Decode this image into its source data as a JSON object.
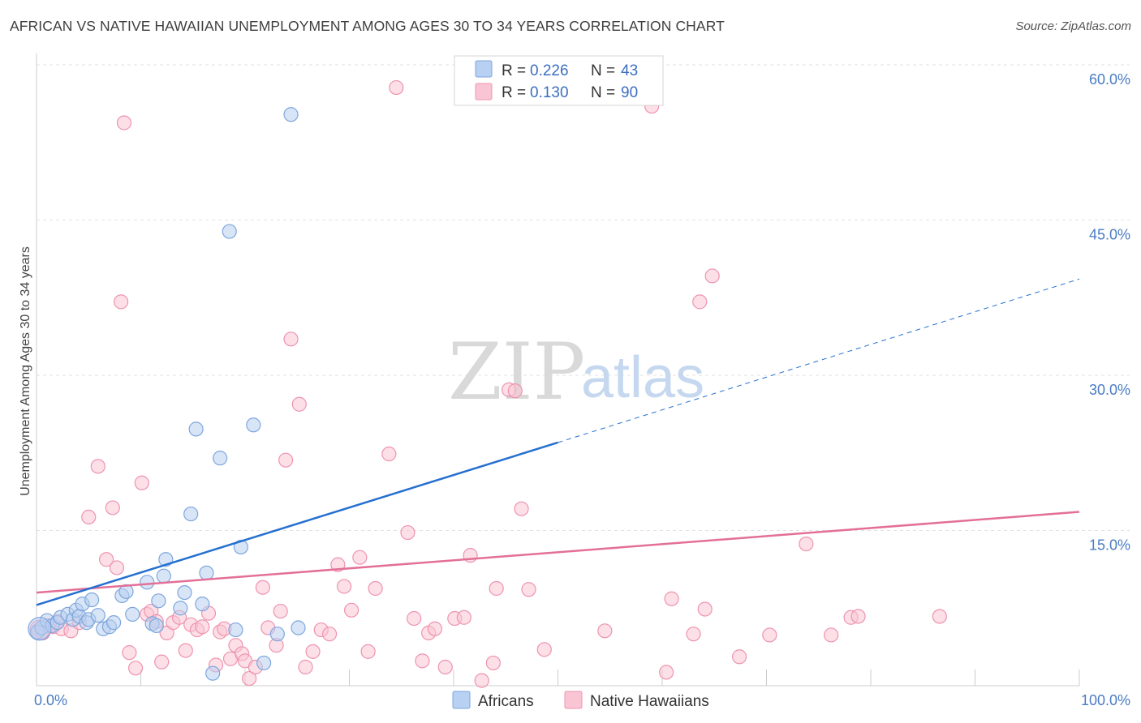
{
  "page": {
    "title": "AFRICAN VS NATIVE HAWAIIAN UNEMPLOYMENT AMONG AGES 30 TO 34 YEARS CORRELATION CHART",
    "source": "Source: ZipAtlas.com",
    "watermark_zip": "ZIP",
    "watermark_atlas": "atlas"
  },
  "colors": {
    "africans_fill": "#b8d0f1",
    "africans_stroke": "#7ea6dd",
    "africans_line": "#2570d0",
    "hawaiians_fill": "#f9c4d4",
    "hawaiians_stroke": "#ee94b0",
    "hawaiians_line": "#e36f97",
    "grid": "#e2e2e2",
    "axis_tick_label": "#4a7cc4"
  },
  "chart_data": {
    "type": "scatter",
    "title": "AFRICAN VS NATIVE HAWAIIAN UNEMPLOYMENT AMONG AGES 30 TO 34 YEARS CORRELATION CHART",
    "xlabel": "",
    "ylabel": "Unemployment Among Ages 30 to 34 years",
    "xlim": [
      0,
      100
    ],
    "ylim": [
      0,
      60
    ],
    "x_tick_labels": [
      "0.0%",
      "100.0%"
    ],
    "y_ticks": [
      15,
      30,
      45,
      60
    ],
    "y_tick_labels": [
      "15.0%",
      "30.0%",
      "45.0%",
      "60.0%"
    ],
    "grid": true,
    "legend_position": "top-center",
    "legend": [
      {
        "series": "Africans",
        "r_label": "R =",
        "r_value": "0.226",
        "n_label": "N =",
        "n_value": "43"
      },
      {
        "series": "Native Hawaiians",
        "r_label": "R =",
        "r_value": "0.130",
        "n_label": "N =",
        "n_value": "90"
      }
    ],
    "series": [
      {
        "name": "Africans",
        "trend": {
          "x0": 0,
          "y0": 7.8,
          "x1": 50,
          "y1": 23.5,
          "dashed_to_x": 100,
          "dashed_to_y": 39.3
        },
        "points": [
          [
            0.1,
            5.2
          ],
          [
            0.5,
            5.6
          ],
          [
            1.0,
            6.3
          ],
          [
            1.5,
            5.8
          ],
          [
            2.0,
            6.1
          ],
          [
            2.3,
            6.6
          ],
          [
            3.0,
            6.9
          ],
          [
            3.5,
            6.4
          ],
          [
            3.8,
            7.3
          ],
          [
            4.1,
            6.7
          ],
          [
            4.4,
            7.9
          ],
          [
            4.8,
            6.1
          ],
          [
            5.0,
            6.4
          ],
          [
            5.3,
            8.3
          ],
          [
            5.9,
            6.8
          ],
          [
            6.4,
            5.5
          ],
          [
            7.0,
            5.7
          ],
          [
            7.4,
            6.1
          ],
          [
            8.2,
            8.7
          ],
          [
            8.6,
            9.1
          ],
          [
            9.2,
            6.9
          ],
          [
            10.6,
            10.0
          ],
          [
            11.1,
            6.0
          ],
          [
            11.5,
            5.8
          ],
          [
            11.7,
            8.2
          ],
          [
            12.2,
            10.6
          ],
          [
            12.4,
            12.2
          ],
          [
            13.8,
            7.5
          ],
          [
            14.2,
            9.0
          ],
          [
            14.8,
            16.6
          ],
          [
            15.3,
            24.8
          ],
          [
            15.9,
            7.9
          ],
          [
            16.3,
            10.9
          ],
          [
            16.9,
            1.2
          ],
          [
            17.6,
            22.0
          ],
          [
            18.5,
            43.9
          ],
          [
            19.1,
            5.4
          ],
          [
            19.6,
            13.4
          ],
          [
            20.8,
            25.2
          ],
          [
            21.8,
            2.2
          ],
          [
            23.1,
            5.0
          ],
          [
            24.4,
            55.2
          ],
          [
            25.1,
            5.6
          ]
        ]
      },
      {
        "name": "Native Hawaiians",
        "trend": {
          "x0": 0,
          "y0": 9.0,
          "x1": 100,
          "y1": 16.8
        },
        "points": [
          [
            0.2,
            5.4
          ],
          [
            0.6,
            5.1
          ],
          [
            1.1,
            5.8
          ],
          [
            1.6,
            5.7
          ],
          [
            2.0,
            6.2
          ],
          [
            2.4,
            5.5
          ],
          [
            3.3,
            5.3
          ],
          [
            4.1,
            6.1
          ],
          [
            5.0,
            16.3
          ],
          [
            5.9,
            21.2
          ],
          [
            6.7,
            12.2
          ],
          [
            7.3,
            17.2
          ],
          [
            7.7,
            11.4
          ],
          [
            8.1,
            37.1
          ],
          [
            8.4,
            54.4
          ],
          [
            8.9,
            3.2
          ],
          [
            9.5,
            1.7
          ],
          [
            10.1,
            19.6
          ],
          [
            10.6,
            6.9
          ],
          [
            11.0,
            7.2
          ],
          [
            11.5,
            6.2
          ],
          [
            12.0,
            2.3
          ],
          [
            12.5,
            5.1
          ],
          [
            13.1,
            6.1
          ],
          [
            13.7,
            6.6
          ],
          [
            14.3,
            3.4
          ],
          [
            14.8,
            5.9
          ],
          [
            15.4,
            5.4
          ],
          [
            15.9,
            5.7
          ],
          [
            16.5,
            7.0
          ],
          [
            17.2,
            2.0
          ],
          [
            17.6,
            5.2
          ],
          [
            18.0,
            5.5
          ],
          [
            18.6,
            2.6
          ],
          [
            19.1,
            3.9
          ],
          [
            19.7,
            3.1
          ],
          [
            20.0,
            2.4
          ],
          [
            20.4,
            0.7
          ],
          [
            21.0,
            1.8
          ],
          [
            21.7,
            9.5
          ],
          [
            22.2,
            5.6
          ],
          [
            23.0,
            3.9
          ],
          [
            23.4,
            7.2
          ],
          [
            23.9,
            21.8
          ],
          [
            24.4,
            33.5
          ],
          [
            25.2,
            27.2
          ],
          [
            25.8,
            1.8
          ],
          [
            26.5,
            3.3
          ],
          [
            27.3,
            5.4
          ],
          [
            28.1,
            5.0
          ],
          [
            28.9,
            11.7
          ],
          [
            29.5,
            9.6
          ],
          [
            30.2,
            7.3
          ],
          [
            31.0,
            12.4
          ],
          [
            31.8,
            3.3
          ],
          [
            32.5,
            9.4
          ],
          [
            33.8,
            22.4
          ],
          [
            34.5,
            57.8
          ],
          [
            35.6,
            14.8
          ],
          [
            36.2,
            6.5
          ],
          [
            37.0,
            2.4
          ],
          [
            37.6,
            5.1
          ],
          [
            38.2,
            5.5
          ],
          [
            39.2,
            1.8
          ],
          [
            40.1,
            6.5
          ],
          [
            41.0,
            6.6
          ],
          [
            41.6,
            12.6
          ],
          [
            42.7,
            0.5
          ],
          [
            43.8,
            2.2
          ],
          [
            44.1,
            9.4
          ],
          [
            45.3,
            28.6
          ],
          [
            45.9,
            28.5
          ],
          [
            46.5,
            17.1
          ],
          [
            47.2,
            9.3
          ],
          [
            48.7,
            3.5
          ],
          [
            59.0,
            56.0
          ],
          [
            60.4,
            1.3
          ],
          [
            60.9,
            8.4
          ],
          [
            63.0,
            5.0
          ],
          [
            63.6,
            37.1
          ],
          [
            64.1,
            7.4
          ],
          [
            64.8,
            39.6
          ],
          [
            67.4,
            2.8
          ],
          [
            70.3,
            4.9
          ],
          [
            73.8,
            13.7
          ],
          [
            76.2,
            4.9
          ],
          [
            78.1,
            6.6
          ],
          [
            78.8,
            6.7
          ],
          [
            86.6,
            6.7
          ],
          [
            54.5,
            5.3
          ]
        ]
      }
    ]
  }
}
